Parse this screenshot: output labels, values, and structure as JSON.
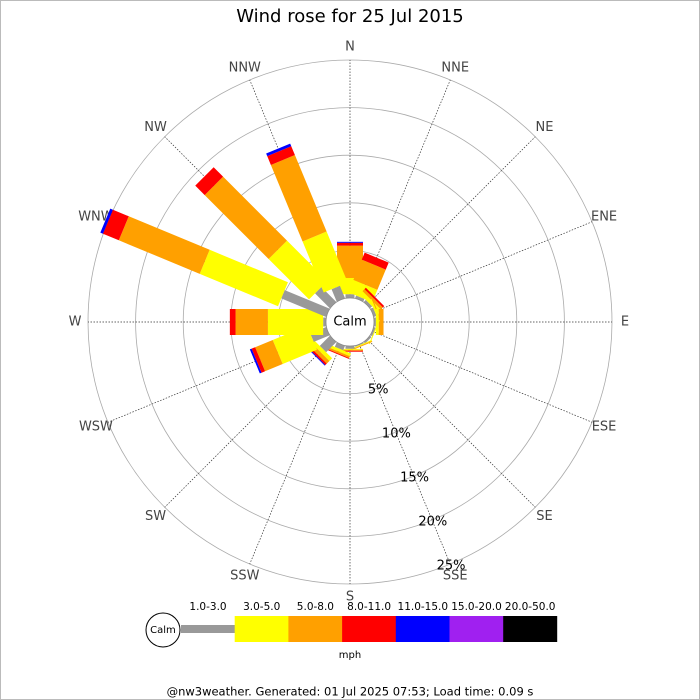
{
  "chart_data": {
    "type": "wind_rose",
    "title": "Wind rose for 25 Jul 2015",
    "directions": [
      "N",
      "NNE",
      "NE",
      "ENE",
      "E",
      "ESE",
      "SE",
      "SSE",
      "S",
      "SSW",
      "SW",
      "WSW",
      "W",
      "WNW",
      "NW",
      "NNW"
    ],
    "calm_label": "Calm",
    "rlim": [
      0,
      25
    ],
    "rticks": [
      {
        "value": 5,
        "label": "5%"
      },
      {
        "value": 10,
        "label": "10%"
      },
      {
        "value": 15,
        "label": "15%"
      },
      {
        "value": 20,
        "label": "20%"
      },
      {
        "value": 25,
        "label": "25%"
      }
    ],
    "unit": "mph",
    "series": [
      {
        "name": "1.0-3.0",
        "color": "#999999",
        "values": [
          0.4,
          0.3,
          0.3,
          0.3,
          0.2,
          0.2,
          0.2,
          0.1,
          0.3,
          0.5,
          1.5,
          1.8,
          0.3,
          5.1,
          2.2,
          1.4
        ]
      },
      {
        "name": "3.0-5.0",
        "color": "#ffff00",
        "values": [
          1.7,
          1.4,
          0.4,
          0.2,
          0.3,
          0.1,
          0,
          0.1,
          0.1,
          0.3,
          0.4,
          3.9,
          5.8,
          8.9,
          6.0,
          5.8
        ]
      },
      {
        "name": "5.0-8.0",
        "color": "#ffa000",
        "values": [
          3.4,
          2.3,
          0.3,
          0.1,
          0.5,
          0,
          0,
          0.1,
          0.1,
          0.2,
          0.4,
          2.0,
          3.4,
          9.2,
          9.5,
          8.7
        ]
      },
      {
        "name": "8.0-11.0",
        "color": "#ff0000",
        "values": [
          0.3,
          0.8,
          0.2,
          0,
          0,
          0,
          0,
          0,
          0.1,
          0.1,
          0.2,
          0.4,
          0.6,
          1.8,
          1.4,
          1.0
        ]
      },
      {
        "name": "11.0-15.0",
        "color": "#0000ff",
        "values": [
          0.1,
          0,
          0,
          0,
          0,
          0,
          0,
          0,
          0,
          0,
          0.1,
          0.2,
          0,
          0.3,
          0,
          0.3
        ]
      },
      {
        "name": "15.0-20.0",
        "color": "#a020f0",
        "values": [
          0,
          0,
          0,
          0,
          0,
          0,
          0,
          0,
          0,
          0,
          0,
          0,
          0,
          0,
          0,
          0
        ]
      },
      {
        "name": "20.0-50.0",
        "color": "#000000",
        "values": [
          0,
          0,
          0,
          0,
          0,
          0,
          0,
          0,
          0,
          0,
          0,
          0,
          0,
          0,
          0,
          0
        ]
      }
    ],
    "footer": "@nw3weather. Generated: 01 Jul 2025 07:53; Load time: 0.09 s"
  }
}
